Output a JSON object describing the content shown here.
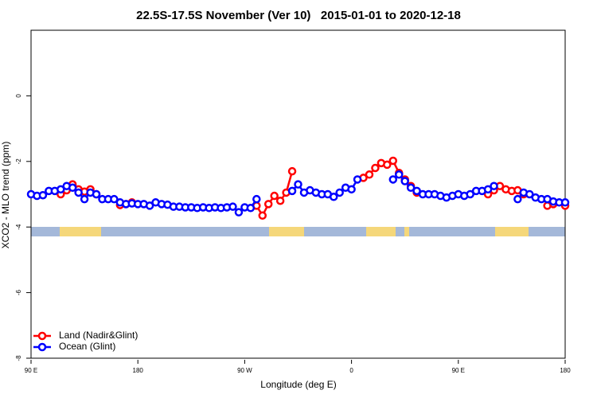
{
  "chart_data": {
    "type": "line",
    "title": "22.5S-17.5S November (Ver 10)   2015-01-01 to 2020-12-18",
    "x_label": "Longitude (deg E)",
    "y_label": "XCO2 - MLO trend (ppm)",
    "x": [
      90,
      95,
      100,
      105,
      110,
      115,
      120,
      125,
      130,
      135,
      140,
      145,
      150,
      155,
      160,
      165,
      170,
      175,
      180,
      185,
      190,
      195,
      200,
      205,
      210,
      215,
      220,
      225,
      230,
      235,
      240,
      245,
      250,
      255,
      260,
      265,
      270,
      275,
      280,
      285,
      290,
      295,
      300,
      305,
      310,
      315,
      320,
      325,
      330,
      335,
      340,
      345,
      350,
      355,
      360,
      365,
      370,
      375,
      380,
      385,
      390,
      395,
      400,
      405,
      410,
      415,
      420,
      425,
      430,
      435,
      440,
      445,
      450,
      455,
      460,
      465,
      470,
      475,
      480,
      485,
      490,
      495,
      500,
      505,
      510,
      515,
      520,
      525,
      530,
      535,
      540
    ],
    "series": [
      {
        "name": "Land (Nadir&Glint)",
        "color": "#ff0000",
        "values": [
          null,
          null,
          null,
          null,
          null,
          -3.0,
          -2.88,
          -2.7,
          -2.85,
          -2.92,
          -2.85,
          -3.0,
          null,
          null,
          null,
          -3.33,
          -3.3,
          -3.25,
          null,
          null,
          null,
          null,
          null,
          null,
          null,
          null,
          null,
          null,
          null,
          null,
          null,
          null,
          null,
          null,
          null,
          null,
          null,
          null,
          -3.35,
          -3.65,
          -3.3,
          -3.05,
          -3.2,
          -2.95,
          -2.3,
          null,
          null,
          null,
          null,
          null,
          null,
          null,
          null,
          null,
          null,
          null,
          -2.5,
          -2.4,
          -2.2,
          -2.05,
          -2.1,
          -1.98,
          -2.35,
          -2.55,
          -2.75,
          -2.95,
          null,
          null,
          null,
          null,
          null,
          null,
          null,
          null,
          null,
          null,
          null,
          -3.0,
          -2.88,
          -2.75,
          -2.85,
          -2.9,
          -2.88,
          -3.0,
          null,
          null,
          null,
          -3.35,
          -3.3,
          null,
          -3.35
        ]
      },
      {
        "name": "Ocean (Glint)",
        "color": "#0000ff",
        "values": [
          -3.0,
          -3.05,
          -3.03,
          -2.9,
          -2.9,
          -2.85,
          -2.75,
          -2.8,
          -2.95,
          -3.15,
          -2.95,
          -3.0,
          -3.15,
          -3.15,
          -3.15,
          -3.25,
          -3.3,
          -3.28,
          -3.3,
          -3.3,
          -3.35,
          -3.25,
          -3.3,
          -3.32,
          -3.38,
          -3.38,
          -3.4,
          -3.4,
          -3.42,
          -3.4,
          -3.42,
          -3.4,
          -3.42,
          -3.4,
          -3.38,
          -3.55,
          -3.4,
          -3.42,
          -3.15,
          null,
          null,
          null,
          null,
          null,
          -2.9,
          -2.7,
          -2.95,
          -2.88,
          -2.95,
          -3.0,
          -3.0,
          -3.08,
          -2.95,
          -2.8,
          -2.85,
          -2.55,
          null,
          null,
          null,
          null,
          null,
          -2.55,
          -2.4,
          -2.6,
          -2.8,
          -2.9,
          -3.0,
          -3.0,
          -3.0,
          -3.05,
          -3.1,
          -3.05,
          -3.0,
          -3.05,
          -3.0,
          -2.9,
          -2.9,
          -2.85,
          -2.75,
          null,
          null,
          null,
          -3.15,
          -2.95,
          -3.0,
          -3.1,
          -3.15,
          -3.15,
          -3.22,
          -3.25,
          -3.25
        ]
      }
    ],
    "xlim": [
      90,
      540
    ],
    "xticks": [
      {
        "value": 90,
        "label": "90 E"
      },
      180,
      {
        "value": 270,
        "label": "90 W"
      },
      {
        "value": 360,
        "label": "0"
      },
      {
        "value": 450,
        "label": "90 E"
      },
      180
    ],
    "ylim": [
      -8,
      2
    ],
    "yticks": [
      0,
      -2,
      -4,
      -6,
      -8
    ],
    "legend": "lower left"
  }
}
